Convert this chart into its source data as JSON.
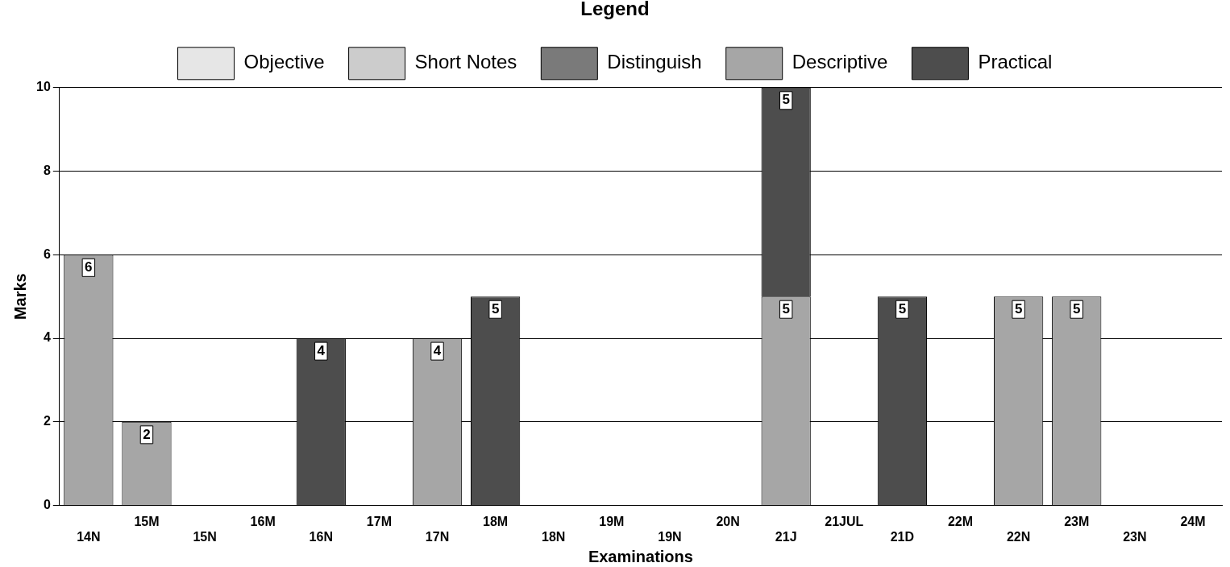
{
  "chart_data": {
    "type": "bar",
    "stacked": true,
    "legend_title": "Legend",
    "legend": "top",
    "xlabel": "Examinations",
    "ylabel": "Marks",
    "categories": [
      "14N",
      "15M",
      "15N",
      "16M",
      "16N",
      "17M",
      "17N",
      "18M",
      "18N",
      "19M",
      "19N",
      "20N",
      "21J",
      "21JUL",
      "21D",
      "22M",
      "22N",
      "23M",
      "23N",
      "24M"
    ],
    "series": [
      {
        "name": "Objective",
        "color": "#e6e6e6",
        "values": [
          null,
          null,
          null,
          null,
          null,
          null,
          null,
          null,
          null,
          null,
          null,
          null,
          null,
          null,
          null,
          null,
          null,
          null,
          null,
          null
        ]
      },
      {
        "name": "Short Notes",
        "color": "#cccccc",
        "values": [
          null,
          null,
          null,
          null,
          null,
          null,
          null,
          null,
          null,
          null,
          null,
          null,
          null,
          null,
          null,
          null,
          null,
          null,
          null,
          null
        ]
      },
      {
        "name": "Distinguish",
        "color": "#7a7a7a",
        "values": [
          null,
          null,
          null,
          null,
          null,
          null,
          null,
          null,
          null,
          null,
          null,
          null,
          null,
          null,
          null,
          null,
          null,
          null,
          null,
          null
        ]
      },
      {
        "name": "Descriptive",
        "color": "#a6a6a6",
        "values": [
          6,
          2,
          null,
          null,
          null,
          null,
          4,
          null,
          null,
          null,
          null,
          null,
          5,
          null,
          null,
          null,
          5,
          5,
          null,
          null
        ]
      },
      {
        "name": "Practical",
        "color": "#4d4d4d",
        "values": [
          null,
          null,
          null,
          null,
          4,
          null,
          null,
          5,
          null,
          null,
          null,
          null,
          5,
          null,
          5,
          null,
          null,
          null,
          null,
          null
        ]
      }
    ],
    "ylim": [
      0,
      10
    ],
    "yticks": [
      0,
      2,
      4,
      6,
      8,
      10
    ],
    "grid": "y",
    "data_labels": true
  }
}
